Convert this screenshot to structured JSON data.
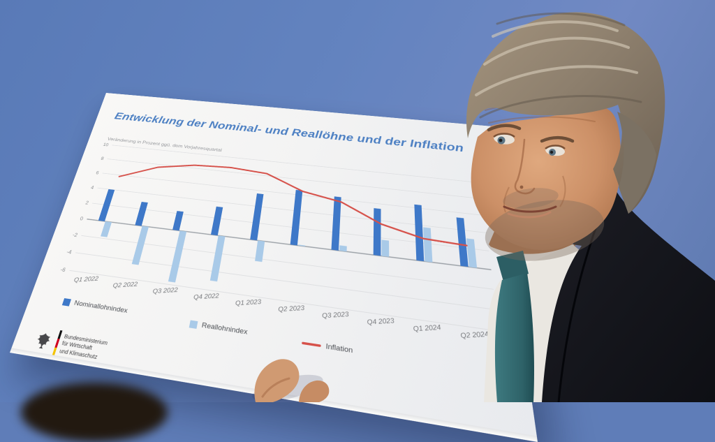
{
  "poster": {
    "title": "Entwicklung der Nominal- und Reallöhne und der Inflation",
    "subtitle": "Veränderung in Prozent ggü. dem Vorjahresquartal",
    "logo": {
      "line1": "Bundesministerium",
      "line2": "für Wirtschaft",
      "line3": "und Klimaschutz"
    }
  },
  "chart_data": {
    "type": "bar",
    "title": "Entwicklung der Nominal- und Reallöhne und der Inflation",
    "ylabel": "Veränderung in Prozent ggü. dem Vorjahresquartal",
    "categories": [
      "Q1 2022",
      "Q2 2022",
      "Q3 2022",
      "Q4 2022",
      "Q1 2023",
      "Q2 2023",
      "Q3 2023",
      "Q4 2023",
      "Q1 2024",
      "Q2 2024"
    ],
    "series": [
      {
        "name": "Nominallohnindex",
        "type": "bar",
        "color": "#3e78c8",
        "values": [
          4.0,
          2.9,
          2.3,
          3.4,
          5.6,
          6.6,
          6.3,
          5.4,
          6.4,
          5.4
        ]
      },
      {
        "name": "Reallohnindex",
        "type": "bar",
        "color": "#a9cae8",
        "values": [
          -1.8,
          -4.4,
          -5.7,
          -5.0,
          -2.3,
          0.1,
          0.6,
          1.8,
          3.8,
          3.1
        ]
      },
      {
        "name": "Inflation",
        "type": "line",
        "color": "#d6514a",
        "values": [
          5.8,
          7.6,
          8.4,
          8.6,
          8.3,
          6.5,
          5.7,
          3.6,
          2.5,
          2.3
        ]
      }
    ],
    "ylim": [
      -6,
      10
    ],
    "yticks": [
      10,
      8,
      6,
      4,
      2,
      0,
      -2,
      -4,
      -6
    ],
    "grid": true,
    "legend_position": "bottom"
  },
  "colors": {
    "background_blue": "#6484bf",
    "title_blue": "#4d80c3",
    "bar_dark_blue": "#3e78c8",
    "bar_light_blue": "#a9cae8",
    "inflation_red": "#d6514a",
    "suit_dark": "#15161b",
    "tie_teal": "#356d72"
  }
}
